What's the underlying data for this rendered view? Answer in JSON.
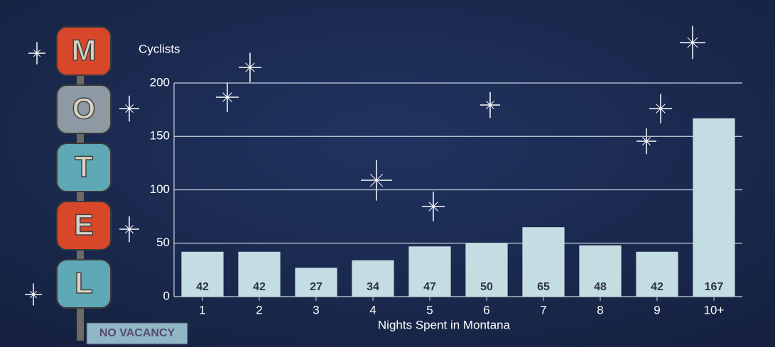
{
  "chart_data": {
    "type": "bar",
    "y_label": "Cyclists",
    "x_label": "Nights Spent in Montana",
    "categories": [
      "1",
      "2",
      "3",
      "4",
      "5",
      "6",
      "7",
      "8",
      "9",
      "10+"
    ],
    "values": [
      42,
      42,
      27,
      34,
      47,
      50,
      65,
      48,
      42,
      167
    ],
    "color": "#c4dde2",
    "ylim": [
      0,
      200
    ],
    "yticks": [
      0,
      50,
      100,
      150,
      200
    ],
    "grid": true
  },
  "sign": {
    "letters": [
      "M",
      "O",
      "T",
      "E",
      "L"
    ],
    "caption": "NO VACANCY"
  }
}
